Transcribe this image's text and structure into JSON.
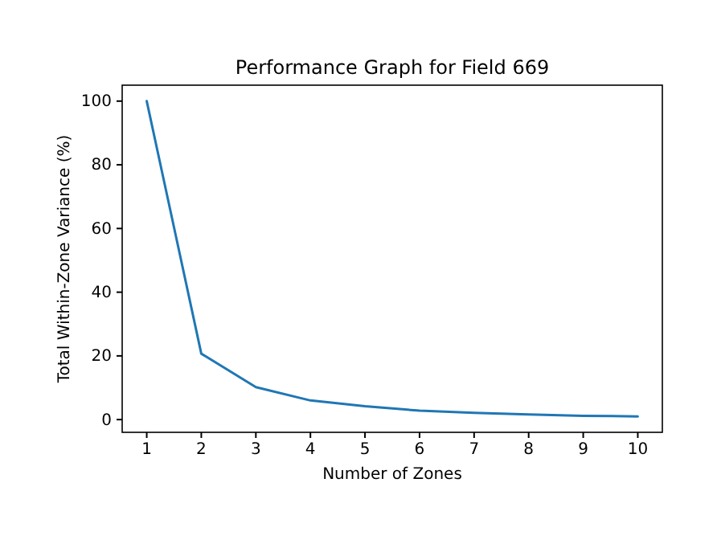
{
  "chart_data": {
    "type": "line",
    "title": "Performance Graph for Field 669",
    "xlabel": "Number of Zones",
    "ylabel": "Total Within-Zone Variance (%)",
    "x": [
      1,
      2,
      3,
      4,
      5,
      6,
      7,
      8,
      9,
      10
    ],
    "series": [
      {
        "color": "#1f77b4",
        "values": [
          100,
          20.7,
          10.2,
          6,
          4.2,
          2.8,
          2.1,
          1.6,
          1.2,
          1
        ]
      }
    ],
    "xlim": [
      0.55,
      10.45
    ],
    "ylim": [
      -4,
      105
    ],
    "xticks": [
      1,
      2,
      3,
      4,
      5,
      6,
      7,
      8,
      9,
      10
    ],
    "yticks": [
      0,
      20,
      40,
      60,
      80,
      100
    ],
    "grid": false,
    "marker": "none",
    "line_style": "solid"
  }
}
